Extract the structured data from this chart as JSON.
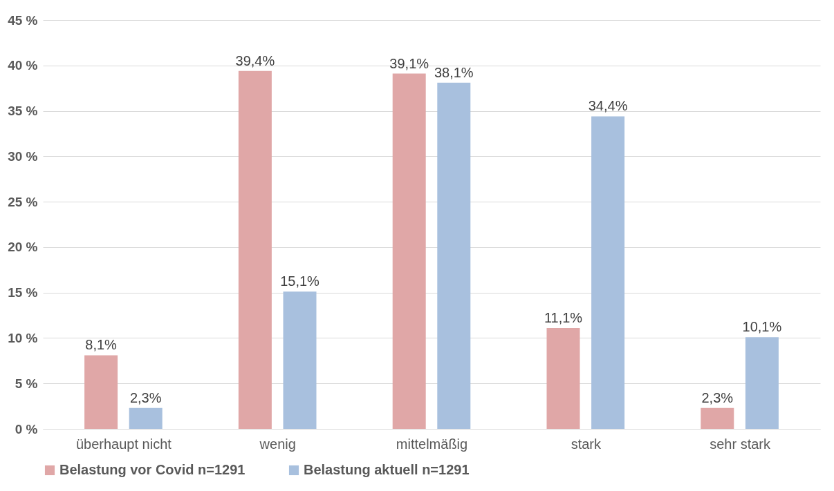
{
  "chart_data": {
    "type": "bar",
    "categories": [
      "überhaupt nicht",
      "wenig",
      "mittelmäßig",
      "stark",
      "sehr stark"
    ],
    "series": [
      {
        "name": "Belastung vor Covid n=1291",
        "color": "#e0a7a7",
        "values": [
          8.1,
          39.4,
          39.1,
          11.1,
          2.3
        ],
        "value_labels": [
          "8,1%",
          "39,4%",
          "39,1%",
          "11,1%",
          "2,3%"
        ]
      },
      {
        "name": "Belastung aktuell n=1291",
        "color": "#a8c0de",
        "values": [
          2.3,
          15.1,
          38.1,
          34.4,
          10.1
        ],
        "value_labels": [
          "2,3%",
          "15,1%",
          "38,1%",
          "34,4%",
          "10,1%"
        ]
      }
    ],
    "ylim": [
      0,
      45
    ],
    "yticks": [
      {
        "value": 0,
        "label": "0 %"
      },
      {
        "value": 5,
        "label": "5 %"
      },
      {
        "value": 10,
        "label": "10 %"
      },
      {
        "value": 15,
        "label": "15 %"
      },
      {
        "value": 20,
        "label": "20 %"
      },
      {
        "value": 25,
        "label": "25 %"
      },
      {
        "value": 30,
        "label": "30 %"
      },
      {
        "value": 35,
        "label": "35 %"
      },
      {
        "value": 40,
        "label": "40 %"
      },
      {
        "value": 45,
        "label": "45 %"
      }
    ],
    "grid": "y",
    "legend": "bottom"
  }
}
